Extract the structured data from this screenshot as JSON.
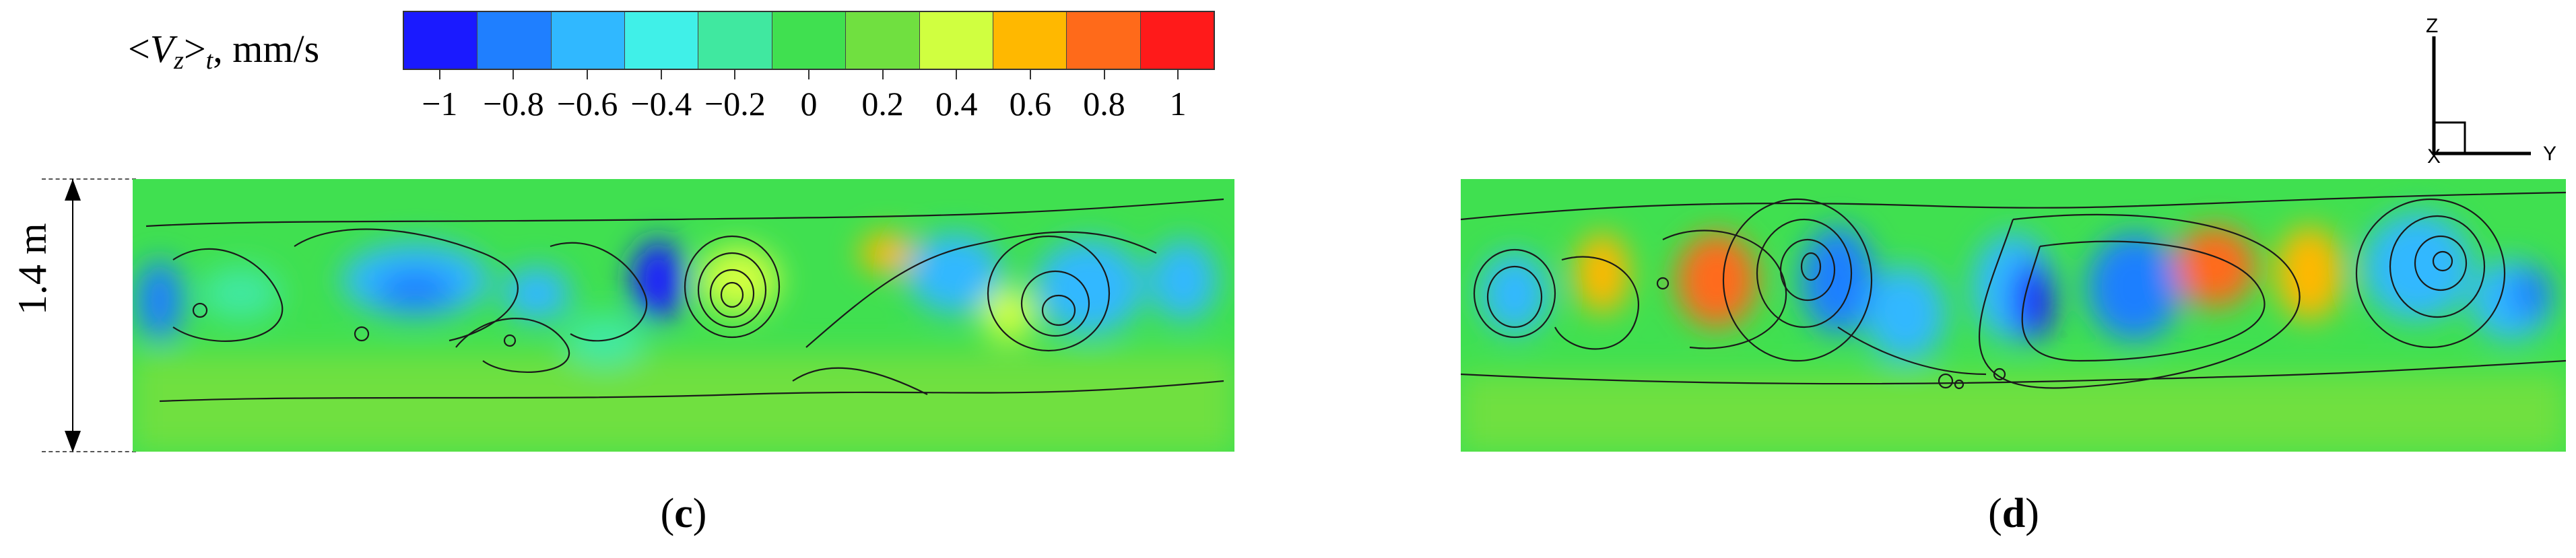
{
  "colorbar": {
    "title_prefix": "<",
    "title_var": "V",
    "title_sub": "z",
    "title_mid": ">",
    "title_sub2": "t",
    "title_unit": ", mm/s",
    "tick_labels": [
      "−1",
      "−0.8",
      "−0.6",
      "−0.4",
      "−0.2",
      "0",
      "0.2",
      "0.4",
      "0.6",
      "0.8",
      "1"
    ],
    "colors": [
      "#1a1aff",
      "#1f7fff",
      "#30b8ff",
      "#40f0e8",
      "#40e8a0",
      "#40e050",
      "#70e040",
      "#d0ff40",
      "#ffb800",
      "#ff6a1a",
      "#ff1a1a"
    ]
  },
  "dimension": {
    "label": "1.4 m"
  },
  "panels": [
    {
      "id": "c",
      "caption_open": "(",
      "caption_letter": "c",
      "caption_close": ")"
    },
    {
      "id": "d",
      "caption_open": "(",
      "caption_letter": "d",
      "caption_close": ")"
    }
  ],
  "axes_triad": {
    "z_label": "Z",
    "y_label": "Y",
    "x_label": "X"
  }
}
